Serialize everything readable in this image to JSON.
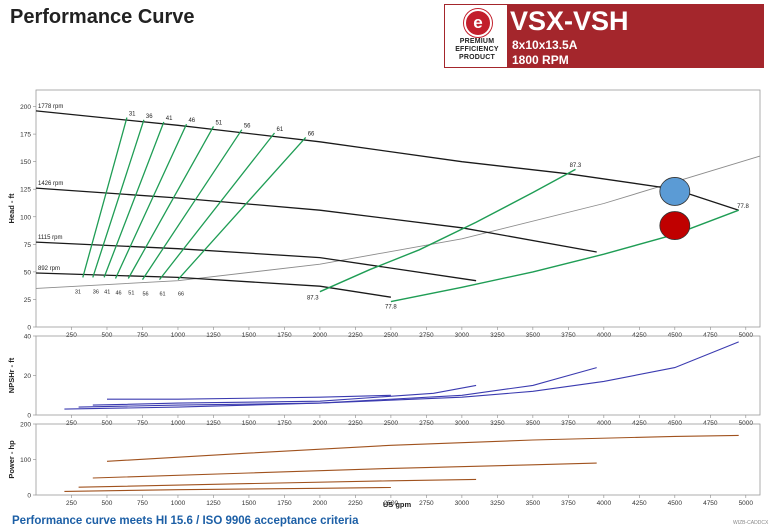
{
  "header": {
    "title": "Performance Curve",
    "badge_lines": [
      "PREMIUM",
      "EFFICIENCY",
      "PRODUCT"
    ],
    "badge_letter": "e",
    "model": "VSX-VSH",
    "size": "8x10x13.5A",
    "rpm": "1800 RPM",
    "brand_color": "#a4262c"
  },
  "footer": {
    "note": "Performance curve meets HI 15.6 / ISO 9906 acceptance criteria",
    "code": "WIZB-CADDCX"
  },
  "chart_data": [
    {
      "type": "line",
      "id": "head",
      "ylabel": "Head - ft",
      "xlabel": "",
      "xlim": [
        0,
        5100
      ],
      "ylim": [
        0,
        215
      ],
      "xticks": [
        250,
        500,
        750,
        1000,
        1250,
        1500,
        1750,
        2000,
        2250,
        2500,
        2750,
        3000,
        3250,
        3500,
        3750,
        4000,
        4250,
        4500,
        4750,
        5000
      ],
      "yticks": [
        0,
        25,
        50,
        75,
        100,
        125,
        150,
        175,
        200
      ],
      "speed_curves": [
        {
          "name": "1778 rpm",
          "x": [
            0,
            1000,
            2000,
            3000,
            3750,
            4500,
            4950
          ],
          "y": [
            196,
            183,
            168,
            150,
            139,
            125,
            106
          ]
        },
        {
          "name": "1426 rpm",
          "x": [
            0,
            1000,
            2000,
            3000,
            3950
          ],
          "y": [
            126,
            117,
            106,
            90,
            68
          ]
        },
        {
          "name": "1115 rpm",
          "x": [
            0,
            1000,
            2000,
            3100
          ],
          "y": [
            77,
            71,
            63,
            42
          ]
        },
        {
          "name": "892 rpm",
          "x": [
            0,
            1000,
            2000,
            2500
          ],
          "y": [
            49,
            45,
            37,
            27
          ]
        }
      ],
      "efficiency_lines": [
        {
          "label": "31",
          "x": [
            330,
            640
          ],
          "y": [
            45,
            190
          ]
        },
        {
          "label": "36",
          "x": [
            400,
            760
          ],
          "y": [
            45,
            188
          ]
        },
        {
          "label": "41",
          "x": [
            480,
            900
          ],
          "y": [
            45,
            186
          ]
        },
        {
          "label": "46",
          "x": [
            560,
            1060
          ],
          "y": [
            44,
            184
          ]
        },
        {
          "label": "51",
          "x": [
            650,
            1250
          ],
          "y": [
            44,
            182
          ]
        },
        {
          "label": "56",
          "x": [
            750,
            1450
          ],
          "y": [
            43,
            179
          ]
        },
        {
          "label": "61",
          "x": [
            870,
            1680
          ],
          "y": [
            43,
            176
          ]
        },
        {
          "label": "66",
          "x": [
            1000,
            1900
          ],
          "y": [
            43,
            172
          ]
        }
      ],
      "bep_lines": [
        {
          "label": "87.3",
          "x": [
            2000,
            2350,
            2700,
            3100,
            3500,
            3800
          ],
          "y": [
            32,
            52,
            70,
            95,
            122,
            143
          ]
        },
        {
          "label": "77.8",
          "x": [
            2500,
            3000,
            3500,
            4000,
            4500,
            4950
          ],
          "y": [
            23,
            36,
            50,
            66,
            84,
            106
          ]
        }
      ],
      "system_curve": {
        "x": [
          0,
          1000,
          2000,
          3000,
          4000,
          5100
        ],
        "y": [
          35,
          42,
          57,
          80,
          112,
          155
        ]
      },
      "point_labels": [
        {
          "text": "87.3",
          "x": 3800,
          "y": 145
        },
        {
          "text": "77.8",
          "x": 4980,
          "y": 108
        },
        {
          "text": "87.3",
          "x": 1950,
          "y": 25
        },
        {
          "text": "77.8",
          "x": 2500,
          "y": 17
        }
      ],
      "eff_bottom_labels": [
        "31",
        "36",
        "41",
        "46",
        "51",
        "56",
        "61",
        "66"
      ],
      "duty_points": [
        {
          "name": "operating-point",
          "x": 4500,
          "y": 123,
          "color": "#5b9bd5"
        },
        {
          "name": "rated-point",
          "x": 4500,
          "y": 92,
          "color": "#c00000"
        }
      ]
    },
    {
      "type": "line",
      "id": "npshr",
      "ylabel": "NPSHr - ft",
      "xlim": [
        0,
        5100
      ],
      "ylim": [
        0,
        40
      ],
      "xticks": [
        250,
        500,
        750,
        1000,
        1250,
        1500,
        1750,
        2000,
        2250,
        2500,
        2750,
        3000,
        3250,
        3500,
        3750,
        4000,
        4250,
        4500,
        4750,
        5000
      ],
      "yticks": [
        0,
        20,
        40
      ],
      "series": [
        {
          "name": "1778 rpm",
          "x": [
            200,
            1000,
            2000,
            3000,
            3500,
            4000,
            4500,
            4950
          ],
          "y": [
            3,
            4,
            6,
            9,
            12,
            17,
            24,
            37
          ]
        },
        {
          "name": "1426 rpm",
          "x": [
            300,
            1000,
            2000,
            3000,
            3500,
            3950
          ],
          "y": [
            4,
            5,
            6,
            10,
            15,
            24
          ]
        },
        {
          "name": "1115 rpm",
          "x": [
            400,
            1000,
            2000,
            2800,
            3100
          ],
          "y": [
            5,
            6,
            7,
            11,
            15
          ]
        },
        {
          "name": "892 rpm",
          "x": [
            500,
            1000,
            2000,
            2500
          ],
          "y": [
            8,
            8,
            9,
            10
          ]
        }
      ]
    },
    {
      "type": "line",
      "id": "power",
      "ylabel": "Power - hp",
      "xlabel": "US gpm",
      "xlim": [
        0,
        5100
      ],
      "ylim": [
        0,
        200
      ],
      "xticks": [
        250,
        500,
        750,
        1000,
        1250,
        1500,
        1750,
        2000,
        2250,
        2500,
        2750,
        3000,
        3250,
        3500,
        3750,
        4000,
        4250,
        4500,
        4750,
        5000
      ],
      "yticks": [
        0,
        100,
        200
      ],
      "series": [
        {
          "name": "1778 rpm",
          "x": [
            500,
            1500,
            2500,
            3500,
            4500,
            4950
          ],
          "y": [
            95,
            118,
            140,
            155,
            165,
            168
          ]
        },
        {
          "name": "1426 rpm",
          "x": [
            400,
            1500,
            2500,
            3500,
            3950
          ],
          "y": [
            48,
            62,
            75,
            85,
            90
          ]
        },
        {
          "name": "1115 rpm",
          "x": [
            300,
            1500,
            2500,
            3100
          ],
          "y": [
            22,
            32,
            40,
            44
          ]
        },
        {
          "name": "892 rpm",
          "x": [
            200,
            1000,
            2000,
            2500
          ],
          "y": [
            10,
            15,
            19,
            21
          ]
        }
      ]
    }
  ]
}
